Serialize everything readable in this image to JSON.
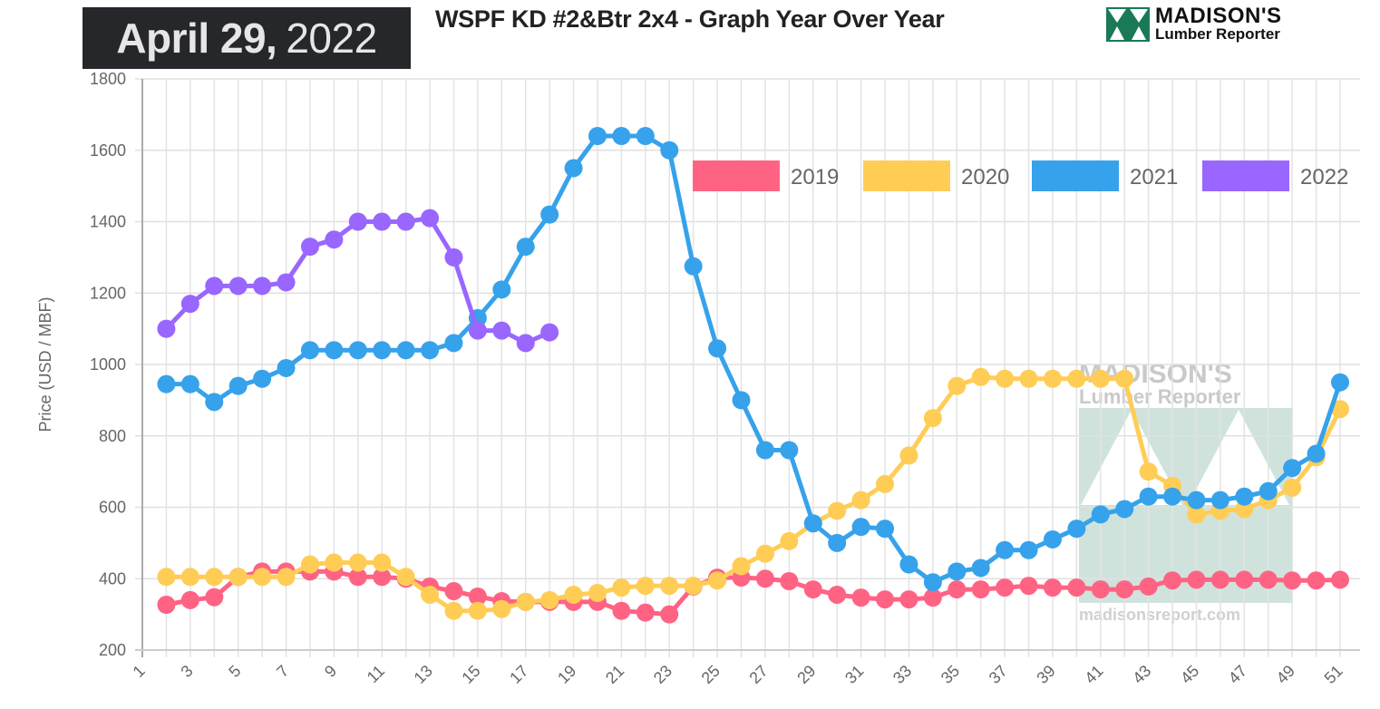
{
  "header": {
    "date_bold": "April 29,",
    "date_year": "2022",
    "title": "WSPF KD #2&Btr 2x4 - Graph Year Over Year",
    "logo_line1": "MADISON'S",
    "logo_line2": "Lumber Reporter"
  },
  "watermark": {
    "line1": "MADISON'S",
    "line2": "Lumber Reporter",
    "url": "madisonsreport.com"
  },
  "chart_data": {
    "type": "line",
    "title": "WSPF KD #2&Btr 2x4 - Graph Year Over Year",
    "xlabel": "",
    "ylabel": "Price (USD / MBF)",
    "ylim": [
      200,
      1800
    ],
    "xlim": [
      1,
      52
    ],
    "yticks": [
      200,
      400,
      600,
      800,
      1000,
      1200,
      1400,
      1600,
      1800
    ],
    "xticks": [
      1,
      3,
      5,
      7,
      9,
      11,
      13,
      15,
      17,
      19,
      21,
      23,
      25,
      27,
      29,
      31,
      33,
      35,
      37,
      39,
      41,
      43,
      45,
      47,
      49,
      51
    ],
    "grid": true,
    "legend_position": "top-right",
    "x_start": 2,
    "series": [
      {
        "name": "2019",
        "color": "#ff6384",
        "values": [
          327,
          340,
          348,
          405,
          420,
          420,
          420,
          420,
          405,
          405,
          400,
          378,
          365,
          350,
          337,
          335,
          335,
          335,
          335,
          310,
          305,
          300,
          378,
          403,
          403,
          400,
          393,
          370,
          355,
          347,
          342,
          342,
          347,
          370,
          370,
          375,
          380,
          375,
          375,
          370,
          370,
          378,
          395,
          397,
          397,
          397,
          397,
          395,
          395,
          397
        ]
      },
      {
        "name": "2020",
        "color": "#ffcd56",
        "values": [
          405,
          405,
          405,
          405,
          405,
          405,
          440,
          445,
          445,
          445,
          405,
          355,
          310,
          310,
          315,
          335,
          340,
          355,
          360,
          375,
          380,
          380,
          380,
          395,
          435,
          470,
          505,
          555,
          590,
          620,
          665,
          745,
          850,
          940,
          965,
          960,
          960,
          960,
          960,
          960,
          960,
          700,
          660,
          580,
          590,
          595,
          620,
          655,
          740,
          875
        ]
      },
      {
        "name": "2021",
        "color": "#36a2eb",
        "values": [
          945,
          945,
          895,
          940,
          960,
          990,
          1040,
          1040,
          1040,
          1040,
          1040,
          1040,
          1060,
          1130,
          1210,
          1330,
          1420,
          1550,
          1640,
          1640,
          1640,
          1600,
          1275,
          1045,
          900,
          760,
          760,
          555,
          500,
          545,
          540,
          440,
          390,
          420,
          430,
          480,
          480,
          510,
          540,
          580,
          595,
          630,
          630,
          620,
          620,
          630,
          645,
          710,
          750,
          950
        ]
      },
      {
        "name": "2022",
        "color": "#9966ff",
        "values": [
          1100,
          1170,
          1220,
          1220,
          1220,
          1230,
          1330,
          1350,
          1400,
          1400,
          1400,
          1410,
          1300,
          1095,
          1095,
          1060,
          1090
        ]
      }
    ]
  }
}
